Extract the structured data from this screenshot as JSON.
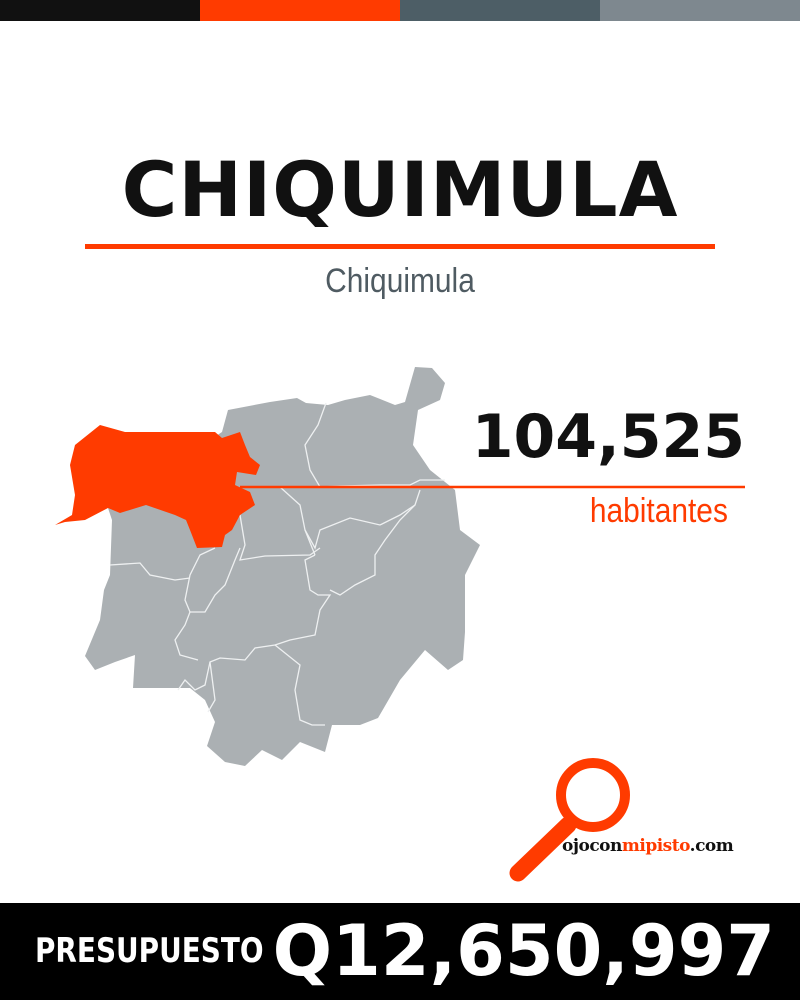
{
  "colors": {
    "black": "#111111",
    "accent": "#ff3b00",
    "slate": "#4d5e66",
    "gray": "#7e888f",
    "map_gray": "#abb0b3"
  },
  "header": {
    "title": "CHIQUIMULA",
    "subtitle": "Chiquimula"
  },
  "stats": {
    "population": "104,525",
    "population_label": "habitantes"
  },
  "logo": {
    "text_a": "ojocon",
    "text_b": "mipisto",
    "text_c": ".com",
    "icon": "magnifying-glass-icon"
  },
  "footer": {
    "budget_label": "PRESUPUESTO",
    "budget_value": "Q12,650,997"
  },
  "map": {
    "highlighted_municipality": "Chiquimula"
  }
}
